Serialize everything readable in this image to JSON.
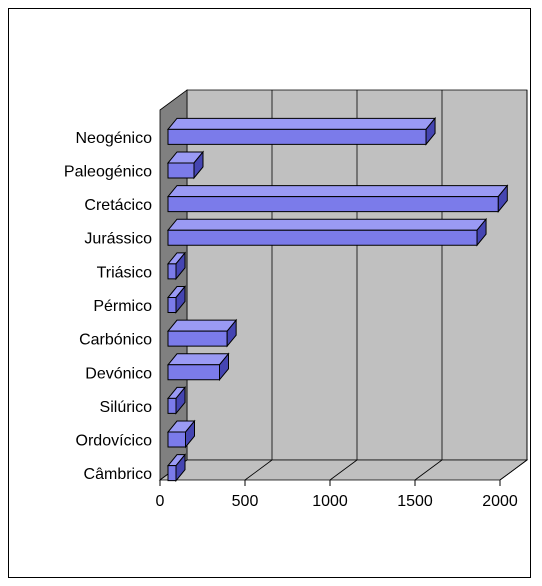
{
  "chart_data": {
    "type": "bar",
    "orientation": "horizontal",
    "style": "3d",
    "title": "",
    "xlabel": "",
    "ylabel": "",
    "categories": [
      "Neogénico",
      "Paleogénico",
      "Cretácico",
      "Jurássico",
      "Triásico",
      "Pérmico",
      "Carbónico",
      "Devónico",
      "Silúrico",
      "Ordovícico",
      "Câmbrico"
    ],
    "values": [
      1565,
      200,
      1990,
      1865,
      50,
      70,
      395,
      350,
      70,
      150,
      65
    ],
    "xlim": [
      0,
      2000
    ],
    "xticks": [
      0,
      500,
      1000,
      1500,
      2000
    ],
    "xtick_labels": [
      "0",
      "500",
      "1000",
      "1500",
      "2000"
    ],
    "grid": true,
    "legend": "none",
    "colors": {
      "bar_face": "#7b7bea",
      "bar_top": "#9a9af4",
      "bar_side": "#4545b2",
      "wall": "#c0c0c0",
      "left_wall": "#808080",
      "floor": "#c0c0c0"
    }
  }
}
